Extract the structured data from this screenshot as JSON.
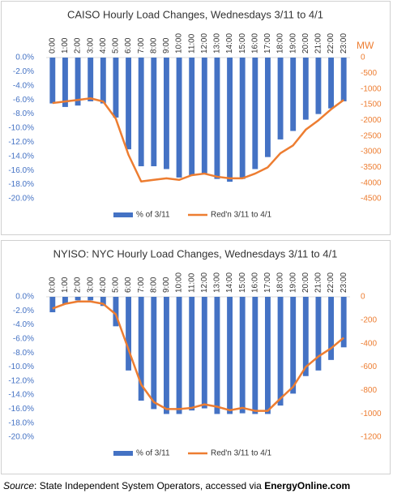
{
  "chart_data": [
    {
      "type": "combo",
      "title": "CAISO Hourly  Load Changes, Wednesdays 3/11 to 4/1",
      "y2_label": "MW",
      "categories": [
        "0:00",
        "1:00",
        "2:00",
        "3:00",
        "4:00",
        "5:00",
        "6:00",
        "7:00",
        "8:00",
        "9:00",
        "10:00",
        "11:00",
        "12:00",
        "13:00",
        "14:00",
        "15:00",
        "16:00",
        "17:00",
        "18:00",
        "19:00",
        "20:00",
        "21:00",
        "22:00",
        "23:00"
      ],
      "series": [
        {
          "name": "% of 3/11",
          "color": "#4472c4",
          "type": "bar",
          "values": [
            -6.5,
            -7.0,
            -6.8,
            -6.2,
            -6.5,
            -8.5,
            -13.0,
            -15.4,
            -15.4,
            -15.8,
            -17.0,
            -16.7,
            -16.4,
            -17.2,
            -17.6,
            -17.2,
            -15.8,
            -14.1,
            -11.6,
            -10.4,
            -8.8,
            -8.0,
            -7.2,
            -6.2
          ]
        },
        {
          "name": "Red'n 3/11 to 4/1",
          "color": "#ed7d31",
          "type": "line",
          "axis": "y2",
          "values": [
            -1450,
            -1400,
            -1350,
            -1300,
            -1400,
            -1950,
            -3100,
            -3950,
            -3900,
            -3850,
            -3900,
            -3750,
            -3700,
            -3800,
            -3850,
            -3850,
            -3700,
            -3500,
            -3050,
            -2800,
            -2300,
            -2000,
            -1650,
            -1350
          ]
        }
      ],
      "ylim": [
        0,
        -20
      ],
      "yticks": [
        {
          "value": 0,
          "label": "0.0%"
        },
        {
          "value": -2,
          "label": "-2.0%"
        },
        {
          "value": -4,
          "label": "-4.0%"
        },
        {
          "value": -6,
          "label": "-6.0%"
        },
        {
          "value": -8,
          "label": "-8.0%"
        },
        {
          "value": -10,
          "label": "-10.0%"
        },
        {
          "value": -12,
          "label": "-12.0%"
        },
        {
          "value": -14,
          "label": "-14.0%"
        },
        {
          "value": -16,
          "label": "-16.0%"
        },
        {
          "value": -18,
          "label": "-18.0%"
        },
        {
          "value": -20,
          "label": "-20.0%"
        }
      ],
      "y2lim": [
        0,
        -4500
      ],
      "y2ticks": [
        0,
        -500,
        -1000,
        -1500,
        -2000,
        -2500,
        -3000,
        -3500,
        -4000,
        -4500
      ],
      "legend": "bottom"
    },
    {
      "type": "combo",
      "title": "NYISO: NYC Hourly Load Changes, Wednesdays 3/11 to 4/1",
      "categories": [
        "0:00",
        "1:00",
        "2:00",
        "3:00",
        "4:00",
        "5:00",
        "6:00",
        "7:00",
        "8:00",
        "9:00",
        "10:00",
        "11:00",
        "12:00",
        "13:00",
        "14:00",
        "15:00",
        "16:00",
        "17:00",
        "18:00",
        "19:00",
        "20:00",
        "21:00",
        "22:00",
        "23:00"
      ],
      "series": [
        {
          "name": "% of 3/11",
          "color": "#4472c4",
          "type": "bar",
          "values": [
            -2.2,
            -1.0,
            -0.5,
            -0.5,
            -1.3,
            -4.2,
            -10.5,
            -14.8,
            -16.0,
            -16.7,
            -16.7,
            -16.2,
            -15.9,
            -16.7,
            -16.7,
            -16.6,
            -16.7,
            -16.7,
            -15.5,
            -13.8,
            -11.3,
            -10.5,
            -9.0,
            -7.2
          ]
        },
        {
          "name": "Red'n 3/11 to 4/1",
          "color": "#ed7d31",
          "type": "line",
          "axis": "y2",
          "values": [
            -100,
            -60,
            -40,
            -40,
            -60,
            -150,
            -450,
            -750,
            -900,
            -960,
            -960,
            -950,
            -920,
            -940,
            -970,
            -950,
            -975,
            -975,
            -870,
            -770,
            -600,
            -510,
            -440,
            -350
          ]
        }
      ],
      "ylim": [
        0,
        -20
      ],
      "yticks": [
        {
          "value": 0,
          "label": "0.0%"
        },
        {
          "value": -2,
          "label": "-2.0%"
        },
        {
          "value": -4,
          "label": "-4.0%"
        },
        {
          "value": -6,
          "label": "-6.0%"
        },
        {
          "value": -8,
          "label": "-8.0%"
        },
        {
          "value": -10,
          "label": "-10.0%"
        },
        {
          "value": -12,
          "label": "-12.0%"
        },
        {
          "value": -14,
          "label": "-14.0%"
        },
        {
          "value": -16,
          "label": "-16.0%"
        },
        {
          "value": -18,
          "label": "-18.0%"
        },
        {
          "value": -20,
          "label": "-20.0%"
        }
      ],
      "y2lim": [
        0,
        -1200
      ],
      "y2ticks": [
        0,
        -200,
        -400,
        -600,
        -800,
        -1000,
        -1200
      ],
      "legend": "bottom"
    }
  ],
  "source": {
    "label": "Source",
    "text": ": State Independent System Operators, accessed via ",
    "site": "EnergyOnline.com"
  }
}
